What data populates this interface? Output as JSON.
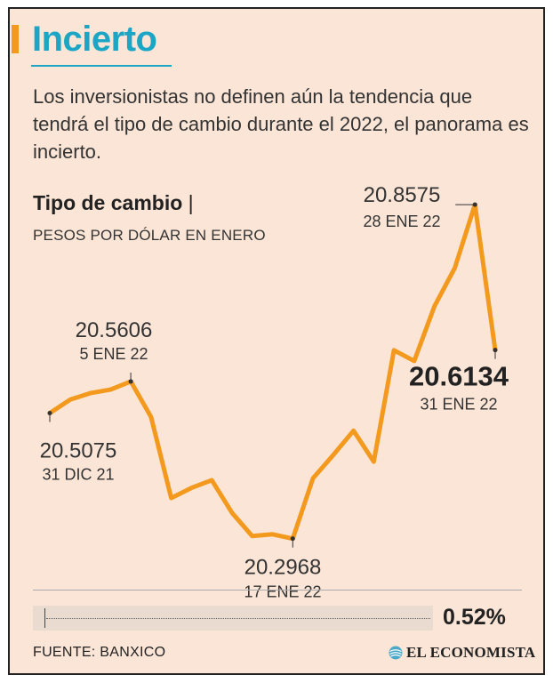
{
  "header": {
    "title": "Incierto",
    "subtitle": "Los inversionistas no definen aún la tendencia que tendrá el tipo de cambio durante el 2022, el panorama es incierto."
  },
  "chart_data": {
    "type": "line",
    "title": "Tipo de cambio",
    "title_suffix": "|",
    "ylabel": "PESOS POR DÓLAR EN ENERO",
    "ylim": [
      20.25,
      20.88
    ],
    "series": [
      {
        "name": "Tipo de cambio",
        "values": [
          20.5075,
          20.53,
          20.541,
          20.547,
          20.5606,
          20.501,
          20.365,
          20.382,
          20.395,
          20.34,
          20.301,
          20.304,
          20.2968,
          20.398,
          20.437,
          20.478,
          20.426,
          20.613,
          20.595,
          20.687,
          20.751,
          20.8575,
          20.6134
        ]
      }
    ],
    "annotations": [
      {
        "point": 0,
        "value": "20.5075",
        "date": "31 DIC 21"
      },
      {
        "point": 4,
        "value": "20.5606",
        "date": "5 ENE 22"
      },
      {
        "point": 12,
        "value": "20.2968",
        "date": "17 ENE 22"
      },
      {
        "point": 21,
        "value": "20.8575",
        "date": "28 ENE 22"
      },
      {
        "point": 22,
        "value": "20.6134",
        "date": "31 ENE 22"
      }
    ],
    "line_color": "#f39a1e"
  },
  "change": {
    "value": "0.52%"
  },
  "footer": {
    "source": "FUENTE: BANXICO",
    "brand": "EL ECONOMISTA"
  },
  "colors": {
    "title": "#1aa6c4",
    "accent": "#f39a1e",
    "background": "#fbe5d6"
  }
}
